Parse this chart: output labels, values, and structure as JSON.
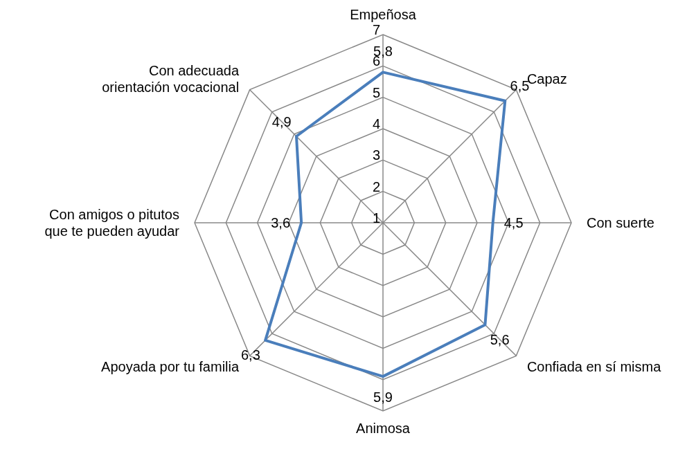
{
  "chart_data": {
    "type": "radar",
    "categories": [
      "Empeñosa",
      "Capaz",
      "Con suerte",
      "Confiada en sí misma",
      "Animosa",
      "Apoyada por tu familia",
      "Con amigos o pitutos que te pueden ayudar",
      "Con adecuada orientación vocacional"
    ],
    "series": [
      {
        "color": "#4a7ebb",
        "values": [
          5.8,
          6.5,
          4.5,
          5.6,
          5.9,
          6.3,
          3.6,
          4.9
        ],
        "value_labels": [
          "5,8",
          "6,5",
          "4,5",
          "5,6",
          "5,9",
          "6,3",
          "3,6",
          "4,9"
        ]
      }
    ],
    "ylim": [
      1,
      7
    ],
    "yticks": [
      1,
      2,
      3,
      4,
      5,
      6,
      7
    ],
    "grid": true,
    "legend": false
  }
}
